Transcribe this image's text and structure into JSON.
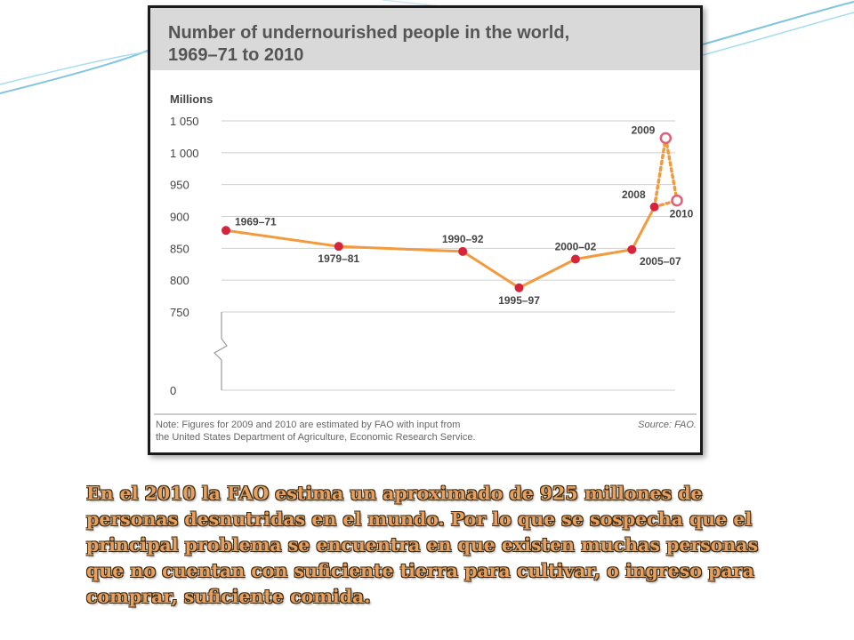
{
  "chart_data": {
    "type": "line",
    "title_line1": "Number of undernourished people in the world,",
    "title_line2": "1969–71 to 2010",
    "ylabel": "Millions",
    "y_ticks": [
      {
        "value": 1050,
        "label": "1 050"
      },
      {
        "value": 1000,
        "label": "1 000"
      },
      {
        "value": 950,
        "label": "950"
      },
      {
        "value": 900,
        "label": "900"
      },
      {
        "value": 850,
        "label": "850"
      },
      {
        "value": 800,
        "label": "800"
      },
      {
        "value": 750,
        "label": "750"
      },
      {
        "value": 0,
        "label": "0"
      }
    ],
    "ylim": [
      750,
      1050
    ],
    "axis_break": true,
    "grid": true,
    "points": [
      {
        "label": "1969–71",
        "year": 1970,
        "value": 878,
        "estimated": false,
        "label_pos": "above"
      },
      {
        "label": "1979–81",
        "year": 1980,
        "value": 853,
        "estimated": false,
        "label_pos": "below"
      },
      {
        "label": "1990–92",
        "year": 1991,
        "value": 845,
        "estimated": false,
        "label_pos": "above"
      },
      {
        "label": "1995–97",
        "year": 1996,
        "value": 788,
        "estimated": false,
        "label_pos": "below"
      },
      {
        "label": "2000–02",
        "year": 2001,
        "value": 833,
        "estimated": false,
        "label_pos": "above"
      },
      {
        "label": "2005–07",
        "year": 2006,
        "value": 848,
        "estimated": false,
        "label_pos": "below"
      },
      {
        "label": "2008",
        "year": 2008,
        "value": 915,
        "estimated": false,
        "label_pos": "above"
      },
      {
        "label": "2009",
        "year": 2009,
        "value": 1023,
        "estimated": true,
        "label_pos": "above"
      },
      {
        "label": "2010",
        "year": 2010,
        "value": 925,
        "estimated": true,
        "label_pos": "below"
      }
    ],
    "note_line1": "Note: Figures for 2009 and 2010 are estimated by FAO with input from",
    "note_line2": "the United States Department of Agriculture, Economic Research Service.",
    "source": "Source: FAO.",
    "colors": {
      "line": "#f39a3c",
      "marker": "#d6243c",
      "estimate_marker": "#e0607a",
      "grid": "#cfcfcf",
      "title_band": "#d9d9d9"
    }
  },
  "caption": "En el 2010 la FAO estima un aproximado de 925 millones de personas desnutridas en el mundo. Por lo que se sospecha que el principal problema se encuentra en que existen muchas personas que no cuentan con suficiente tierra para cultivar, o ingreso para comprar, suficiente comida."
}
